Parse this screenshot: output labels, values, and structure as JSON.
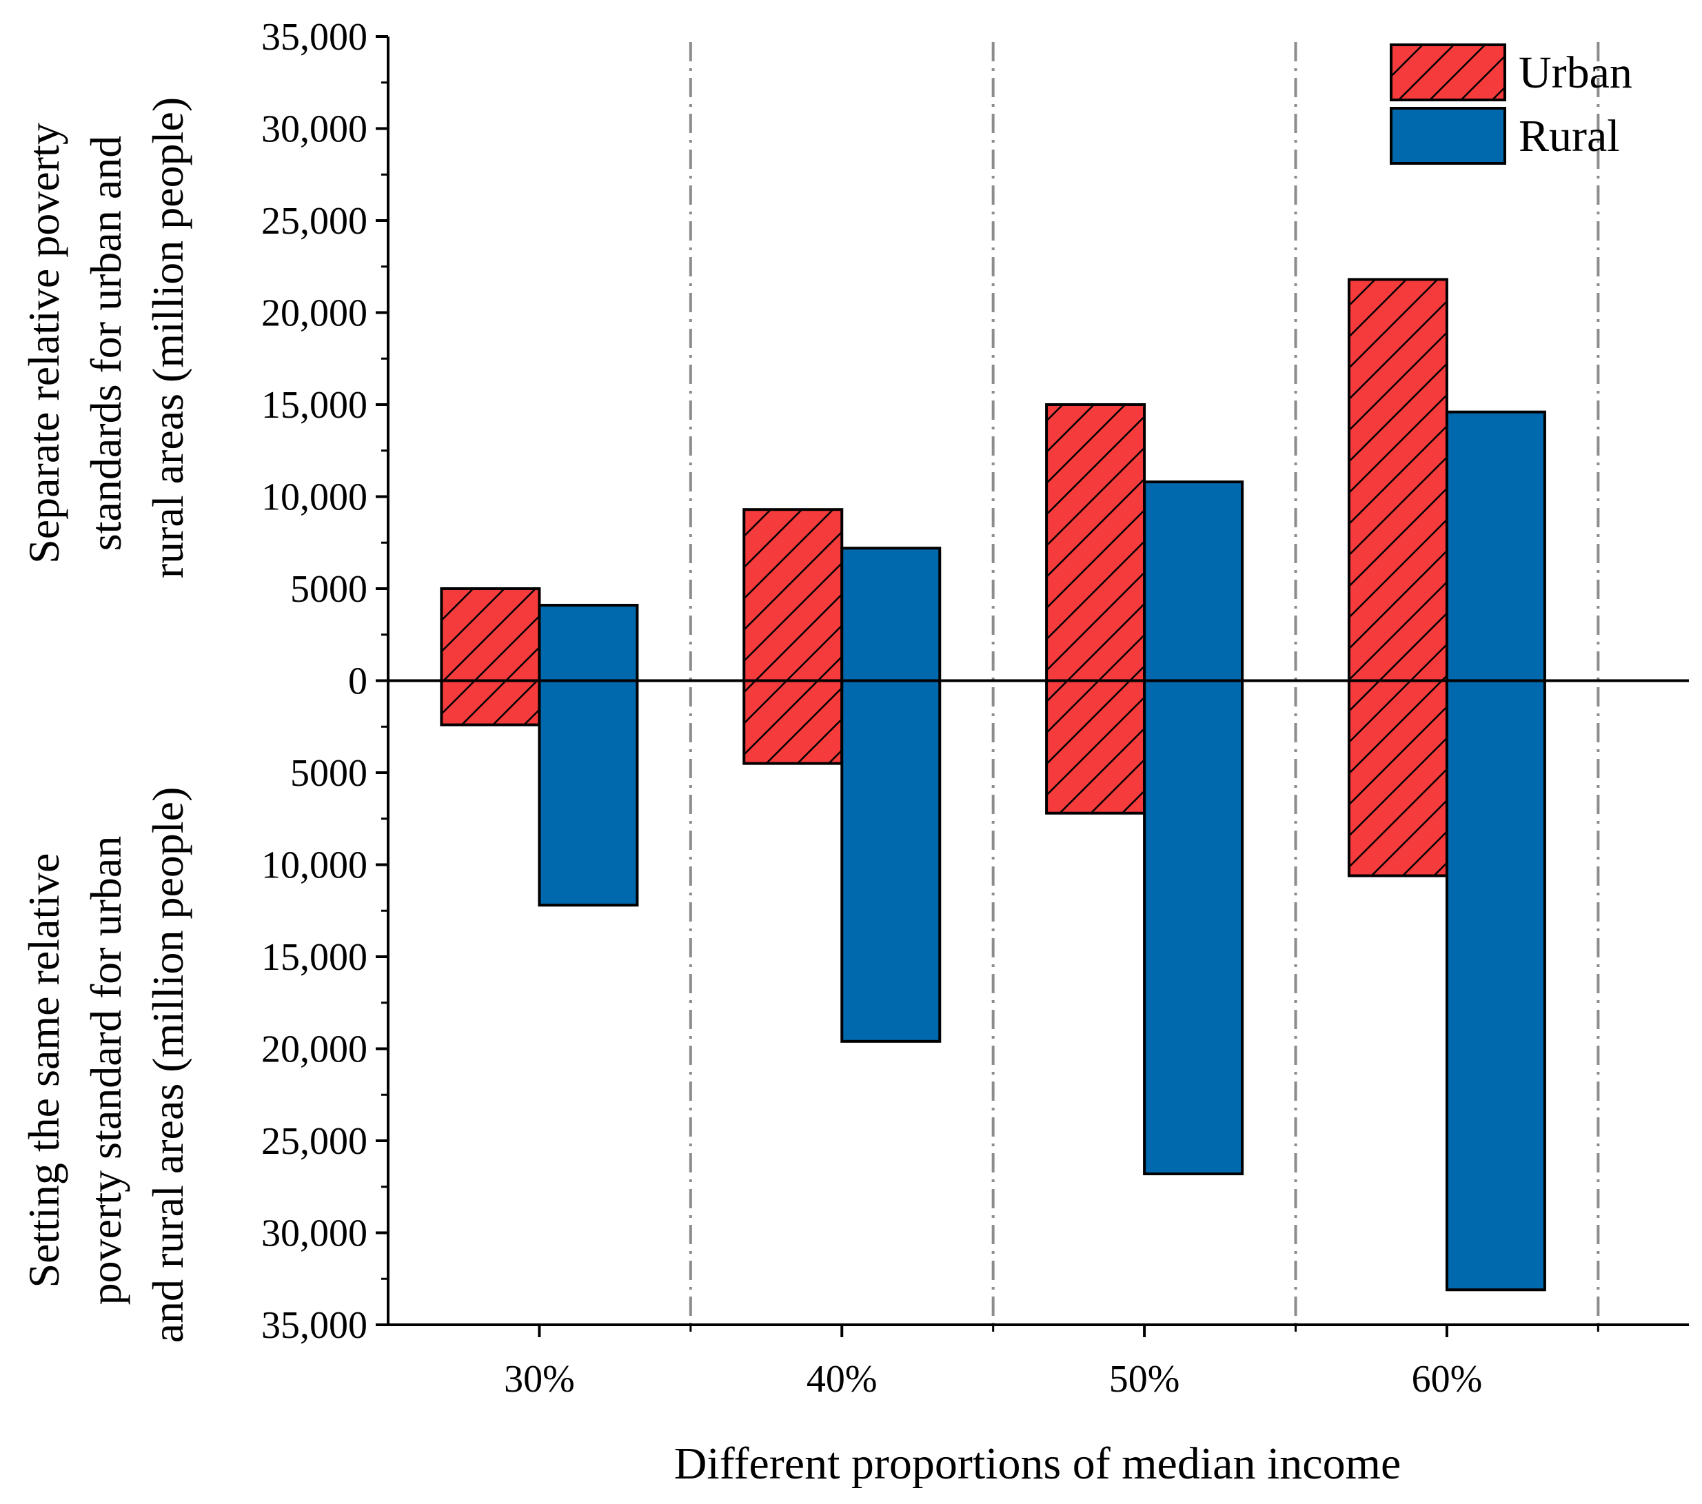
{
  "chart_data": {
    "type": "bar",
    "xlabel": "Different proportions of median income",
    "ylabel_upper": [
      "Separate relative poverty",
      "standards for urban and",
      "rural areas (million people)"
    ],
    "ylabel_lower": [
      "Setting the same relative",
      "poverty standard for urban",
      "and rural areas (million people)"
    ],
    "categories": [
      "30%",
      "40%",
      "50%",
      "60%"
    ],
    "ylim": [
      -35000,
      35000
    ],
    "yticks": [
      {
        "value": 35000,
        "label": "35,000"
      },
      {
        "value": 30000,
        "label": "30,000"
      },
      {
        "value": 25000,
        "label": "25,000"
      },
      {
        "value": 20000,
        "label": "20,000"
      },
      {
        "value": 15000,
        "label": "15,000"
      },
      {
        "value": 10000,
        "label": "10,000"
      },
      {
        "value": 5000,
        "label": "5000"
      },
      {
        "value": 0,
        "label": "0"
      },
      {
        "value": -5000,
        "label": "5000"
      },
      {
        "value": -10000,
        "label": "10,000"
      },
      {
        "value": -15000,
        "label": "15,000"
      },
      {
        "value": -20000,
        "label": "20,000"
      },
      {
        "value": -25000,
        "label": "25,000"
      },
      {
        "value": -30000,
        "label": "30,000"
      },
      {
        "value": -35000,
        "label": "35,000"
      }
    ],
    "series": [
      {
        "name": "Urban",
        "color": "#f53b3b",
        "pattern": "hatch",
        "upper_values": [
          5000,
          9300,
          15000,
          21800
        ],
        "lower_values": [
          2400,
          4500,
          7200,
          10600
        ]
      },
      {
        "name": "Rural",
        "color": "#0068ac",
        "pattern": "solid",
        "upper_values": [
          4100,
          7200,
          10800,
          14600
        ],
        "lower_values": [
          12200,
          19600,
          26800,
          33100
        ]
      }
    ],
    "legend": {
      "position": "top-right",
      "entries": [
        "Urban",
        "Rural"
      ]
    },
    "grid": false,
    "separators": "dash-dot vertical lines between categories"
  }
}
